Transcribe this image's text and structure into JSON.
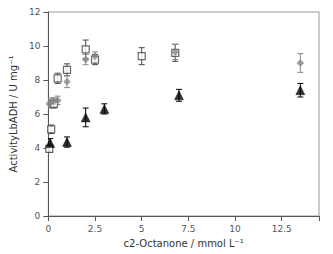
{
  "chart_data": {
    "type": "scatter",
    "xlabel": "c2-Octanone / mmol L⁻¹",
    "ylabel": "ActivityLbADH / U mg⁻¹",
    "xlim": [
      0,
      14.5
    ],
    "ylim": [
      0,
      12
    ],
    "xticks": [
      0.0,
      2.5,
      5.0,
      7.5,
      10.0,
      12.5
    ],
    "yticks": [
      0,
      2,
      4,
      6,
      8,
      10,
      12
    ],
    "grid": false,
    "series": [
      {
        "marker": "square-open",
        "color": "#444444",
        "x": [
          0.05,
          0.15,
          0.3,
          0.5,
          1.0,
          2.0,
          2.5,
          5.0,
          6.8
        ],
        "values": [
          3.95,
          5.1,
          6.6,
          8.1,
          8.6,
          9.8,
          9.2,
          9.4,
          9.6
        ],
        "yerr": [
          0.2,
          0.25,
          0.25,
          0.3,
          0.35,
          0.55,
          0.3,
          0.5,
          0.5
        ]
      },
      {
        "marker": "diamond",
        "color": "#888888",
        "x": [
          0.05,
          0.15,
          0.3,
          0.5,
          1.0,
          2.0,
          2.5,
          6.8,
          13.5
        ],
        "values": [
          6.6,
          6.7,
          6.75,
          6.8,
          7.9,
          9.2,
          9.4,
          9.65,
          9.0
        ],
        "yerr": [
          0.25,
          0.25,
          0.2,
          0.25,
          0.35,
          0.3,
          0.25,
          0.45,
          0.55
        ]
      },
      {
        "marker": "triangle",
        "color": "#000000",
        "x": [
          0.1,
          1.0,
          2.0,
          3.0,
          7.0,
          13.5
        ],
        "values": [
          4.3,
          4.35,
          5.8,
          6.3,
          7.1,
          7.4
        ],
        "yerr": [
          0.25,
          0.3,
          0.55,
          0.3,
          0.35,
          0.4
        ]
      }
    ]
  }
}
